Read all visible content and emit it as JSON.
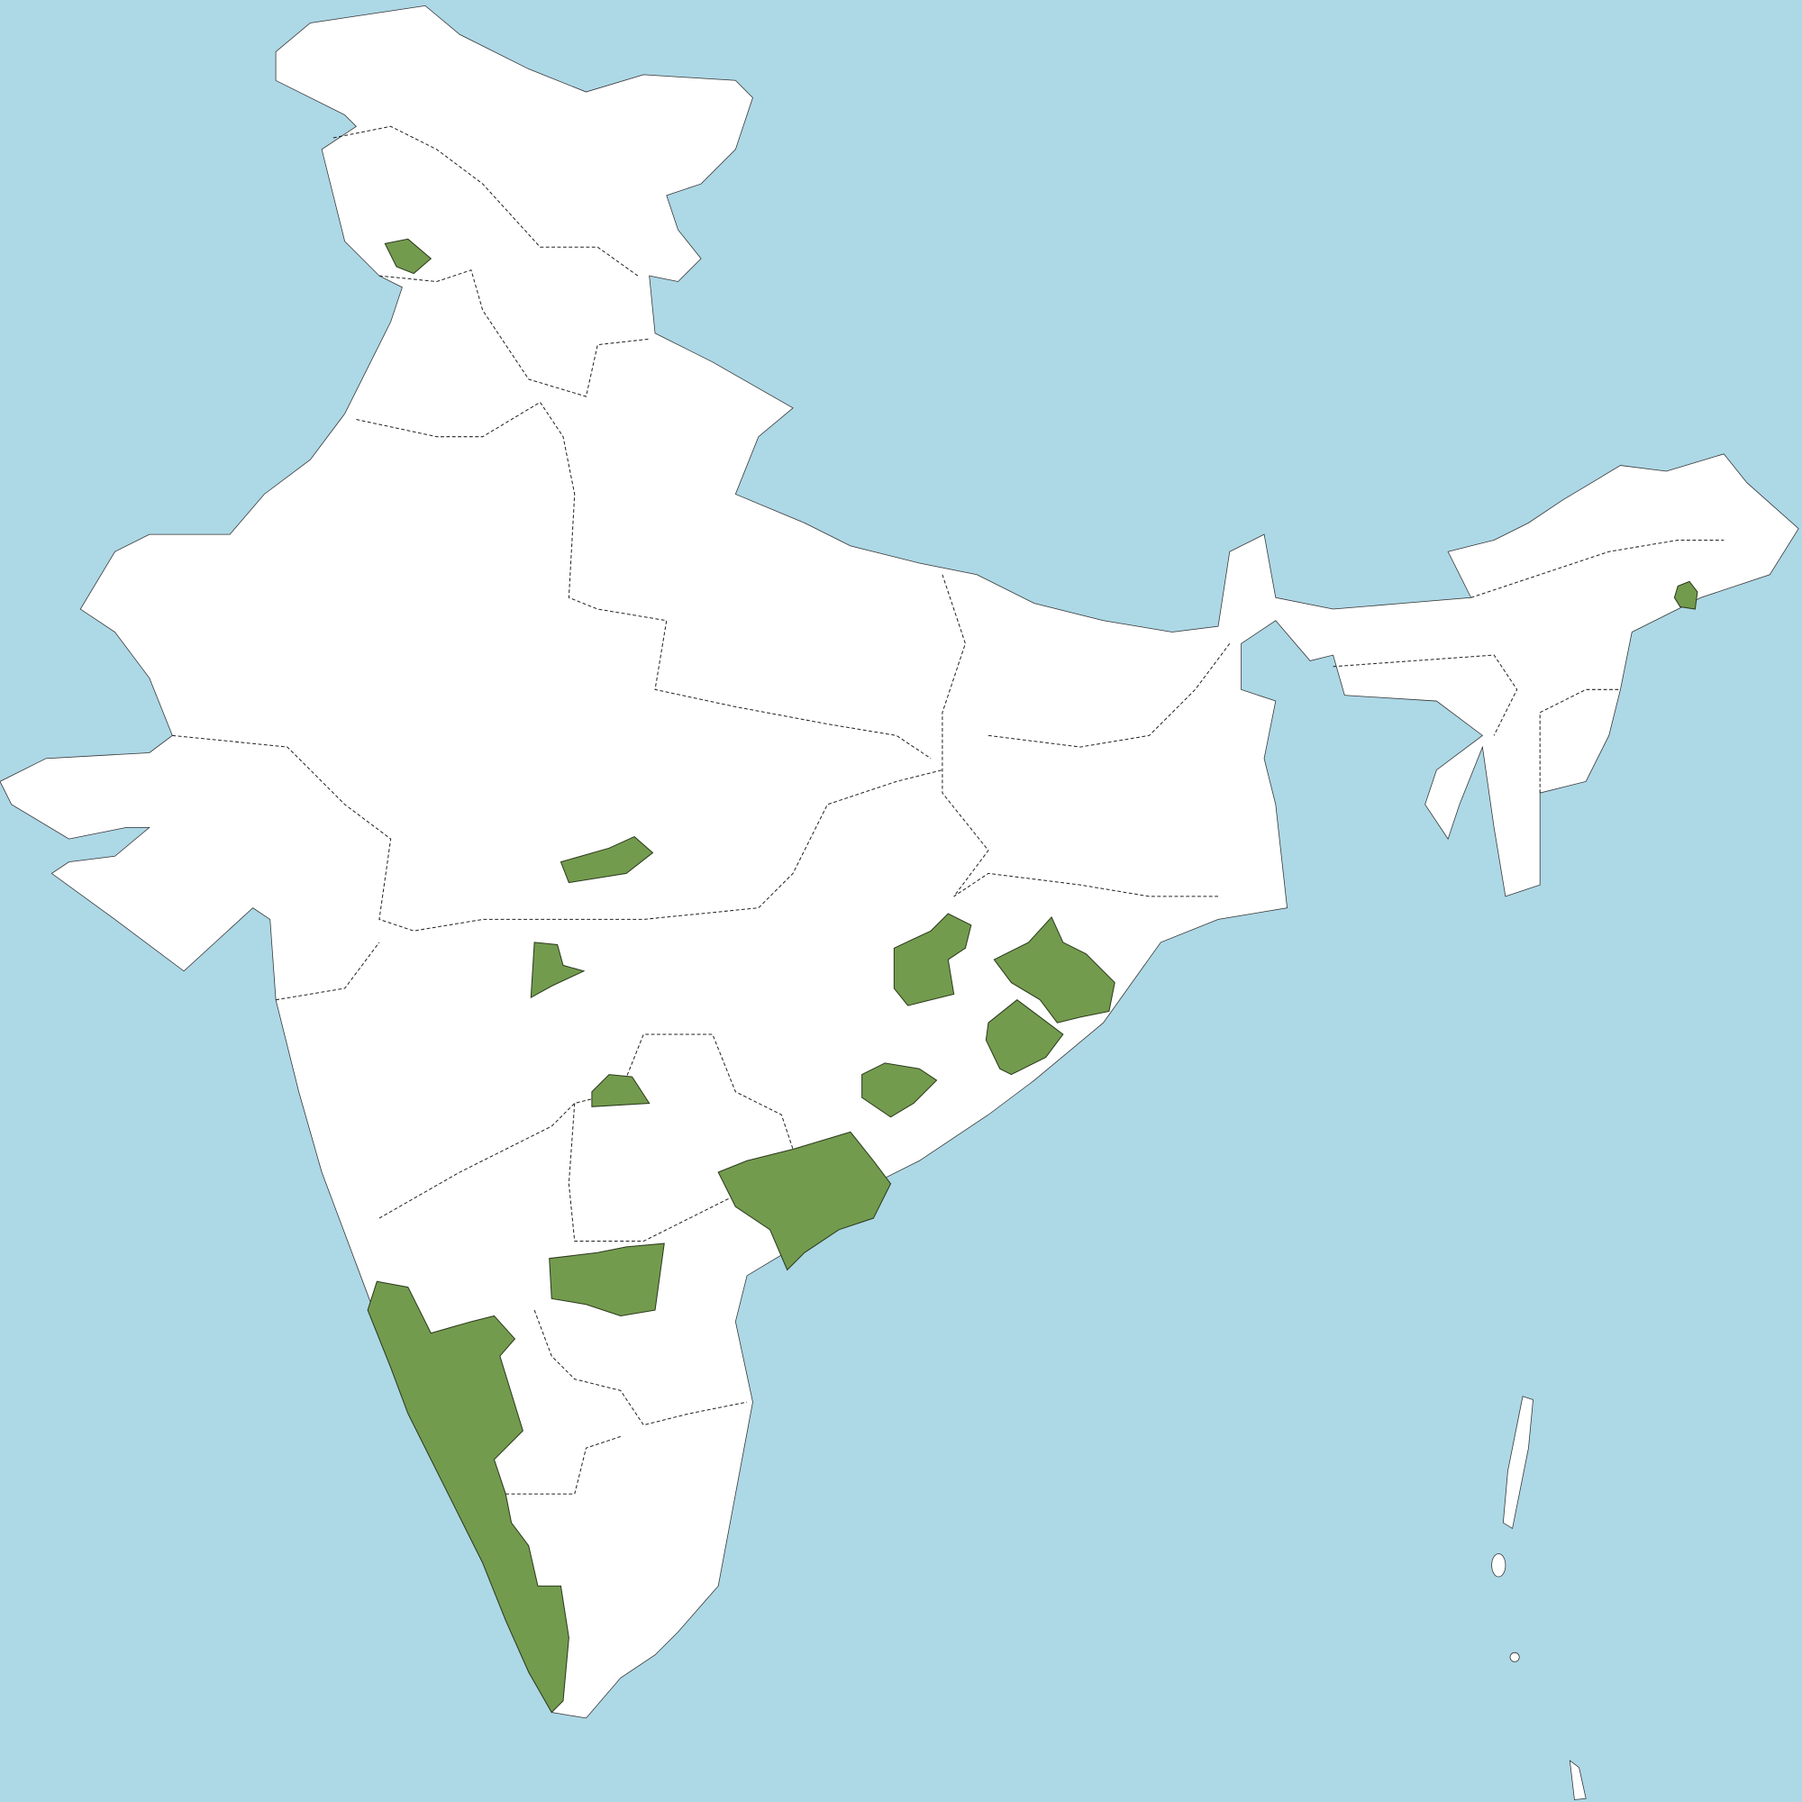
{
  "map": {
    "colors": {
      "water": "#add8e6",
      "land": "#ffffff",
      "highlighted": "#739b4e",
      "borders": "#222222"
    },
    "highlighted_region_count": 12
  }
}
